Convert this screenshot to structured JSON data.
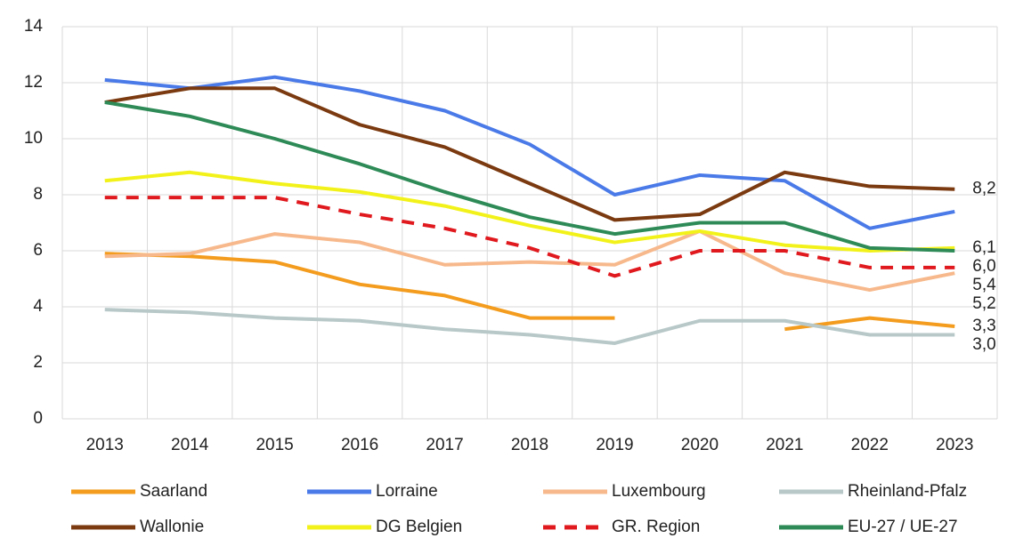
{
  "chart_data": {
    "type": "line",
    "categories": [
      "2013",
      "2014",
      "2015",
      "2016",
      "2017",
      "2018",
      "2019",
      "2020",
      "2021",
      "2022",
      "2023"
    ],
    "ylim": [
      0,
      14
    ],
    "yticks": [
      0,
      2,
      4,
      6,
      8,
      10,
      12,
      14
    ],
    "grid": true,
    "legend": "bottom",
    "series": [
      {
        "name": "Saarland",
        "color": "#f39c1e",
        "values": [
          5.9,
          5.8,
          5.6,
          4.8,
          4.4,
          3.6,
          3.6,
          null,
          3.2,
          3.6,
          3.3
        ],
        "value_labels": [
          null,
          null,
          null,
          null,
          null,
          null,
          null,
          null,
          null,
          null,
          "3,3"
        ]
      },
      {
        "name": "Lorraine",
        "color": "#4a7ae8",
        "values": [
          12.1,
          11.8,
          12.2,
          11.7,
          11.0,
          9.8,
          8.0,
          8.7,
          8.5,
          6.8,
          7.4
        ]
      },
      {
        "name": "Luxembourg",
        "color": "#f7b98c",
        "values": [
          5.8,
          5.9,
          6.6,
          6.3,
          5.5,
          5.6,
          5.5,
          6.7,
          5.2,
          4.6,
          5.2
        ],
        "value_labels": [
          null,
          null,
          null,
          null,
          null,
          null,
          null,
          null,
          null,
          null,
          "5,2"
        ]
      },
      {
        "name": "Rheinland-Pfalz",
        "color": "#b8c8c8",
        "values": [
          3.9,
          3.8,
          3.6,
          3.5,
          3.2,
          3.0,
          2.7,
          3.5,
          3.5,
          3.0,
          3.0
        ],
        "value_labels": [
          null,
          null,
          null,
          null,
          null,
          null,
          null,
          null,
          null,
          null,
          "3,0"
        ]
      },
      {
        "name": "Wallonie",
        "color": "#7b3a10",
        "values": [
          11.3,
          11.8,
          11.8,
          10.5,
          9.7,
          8.4,
          7.1,
          7.3,
          8.8,
          8.3,
          8.2
        ],
        "value_labels": [
          null,
          null,
          null,
          null,
          null,
          null,
          null,
          null,
          null,
          null,
          "8,2"
        ]
      },
      {
        "name": "DG Belgien",
        "color": "#f2f21a",
        "values": [
          8.5,
          8.8,
          8.4,
          8.1,
          7.6,
          6.9,
          6.3,
          6.7,
          6.2,
          6.0,
          6.1
        ],
        "value_labels": [
          null,
          null,
          null,
          null,
          null,
          null,
          null,
          null,
          null,
          null,
          "6,1"
        ]
      },
      {
        "name": "GR. Region",
        "color": "#e0191e",
        "dashed": true,
        "values": [
          7.9,
          7.9,
          7.9,
          7.3,
          6.8,
          6.1,
          5.1,
          6.0,
          6.0,
          5.4,
          5.4
        ],
        "value_labels": [
          null,
          null,
          null,
          null,
          null,
          null,
          null,
          null,
          null,
          null,
          "5,4"
        ]
      },
      {
        "name": "EU-27 / UE-27",
        "color": "#2e8b57",
        "values": [
          11.3,
          10.8,
          10.0,
          9.1,
          8.1,
          7.2,
          6.6,
          7.0,
          7.0,
          6.1,
          6.0
        ],
        "value_labels": [
          null,
          null,
          null,
          null,
          null,
          null,
          null,
          null,
          null,
          null,
          "6,0"
        ]
      }
    ]
  }
}
